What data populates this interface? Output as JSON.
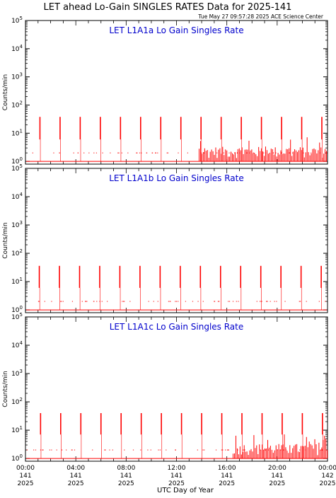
{
  "header": {
    "title": "LET ahead Lo-Gain SINGLES RATES Data for 2025-141",
    "timestamp": "Tue May 27 09:57:28 2025 ACE Science Center"
  },
  "colors": {
    "data": "#ff0000",
    "panel_title": "#0000cc",
    "axis": "#000000"
  },
  "chart_data": [
    {
      "type": "bar",
      "title": "LET L1A1a Lo Gain Singles Rate",
      "ylabel": "Counts/min",
      "yscale": "log",
      "ylim": [
        0.8,
        100000
      ],
      "yticks": [
        1,
        10,
        100,
        1000,
        10000,
        100000
      ],
      "ytick_labels": [
        {
          "base": "10",
          "exp": "0"
        },
        {
          "base": "10",
          "exp": "1"
        },
        {
          "base": "10",
          "exp": "2"
        },
        {
          "base": "10",
          "exp": "3"
        },
        {
          "base": "10",
          "exp": "4"
        },
        {
          "base": "10",
          "exp": "5"
        }
      ],
      "xlim": [
        0,
        24
      ],
      "periodic_spikes": {
        "start": 1.15,
        "interval": 1.6,
        "count": 15,
        "peak": 38,
        "low": 6
      },
      "background_level": 1,
      "noise_level": 2,
      "noisy_intervals": [
        [
          13.8,
          24
        ]
      ]
    },
    {
      "type": "bar",
      "title": "LET L1A1b Lo Gain Singles Rate",
      "ylabel": "Counts/min",
      "yscale": "log",
      "ylim": [
        0.8,
        100000
      ],
      "yticks": [
        1,
        10,
        100,
        1000,
        10000,
        100000
      ],
      "ytick_labels": [
        {
          "base": "10",
          "exp": "0"
        },
        {
          "base": "10",
          "exp": "1"
        },
        {
          "base": "10",
          "exp": "2"
        },
        {
          "base": "10",
          "exp": "3"
        },
        {
          "base": "10",
          "exp": "4"
        },
        {
          "base": "10",
          "exp": "5"
        }
      ],
      "xlim": [
        0,
        24
      ],
      "periodic_spikes": {
        "start": 1.1,
        "interval": 1.6,
        "count": 15,
        "peak": 36,
        "low": 6
      },
      "background_level": 1,
      "noise_level": 2,
      "noisy_intervals": []
    },
    {
      "type": "bar",
      "title": "LET L1A1c Lo Gain Singles Rate",
      "ylabel": "Counts/min",
      "yscale": "log",
      "ylim": [
        0.8,
        100000
      ],
      "yticks": [
        1,
        10,
        100,
        1000,
        10000,
        100000
      ],
      "ytick_labels": [
        {
          "base": "10",
          "exp": "0"
        },
        {
          "base": "10",
          "exp": "1"
        },
        {
          "base": "10",
          "exp": "2"
        },
        {
          "base": "10",
          "exp": "3"
        },
        {
          "base": "10",
          "exp": "4"
        },
        {
          "base": "10",
          "exp": "5"
        }
      ],
      "xlim": [
        0,
        24
      ],
      "periodic_spikes": {
        "start": 1.2,
        "interval": 1.6,
        "count": 15,
        "peak": 40,
        "low": 7
      },
      "background_level": 1,
      "noise_level": 2,
      "noisy_intervals": [
        [
          16.5,
          24
        ]
      ]
    }
  ],
  "x_axis": {
    "label": "UTC Day of Year",
    "ticks": [
      {
        "x": 0,
        "time": "00:00",
        "doy": "141",
        "year": "2025"
      },
      {
        "x": 4,
        "time": "04:00",
        "doy": "141",
        "year": "2025"
      },
      {
        "x": 8,
        "time": "08:00",
        "doy": "141",
        "year": "2025"
      },
      {
        "x": 12,
        "time": "12:00",
        "doy": "141",
        "year": "2025"
      },
      {
        "x": 16,
        "time": "16:00",
        "doy": "141",
        "year": "2025"
      },
      {
        "x": 20,
        "time": "20:00",
        "doy": "141",
        "year": "2025"
      },
      {
        "x": 24,
        "time": "00:00",
        "doy": "142",
        "year": "2025"
      }
    ]
  }
}
